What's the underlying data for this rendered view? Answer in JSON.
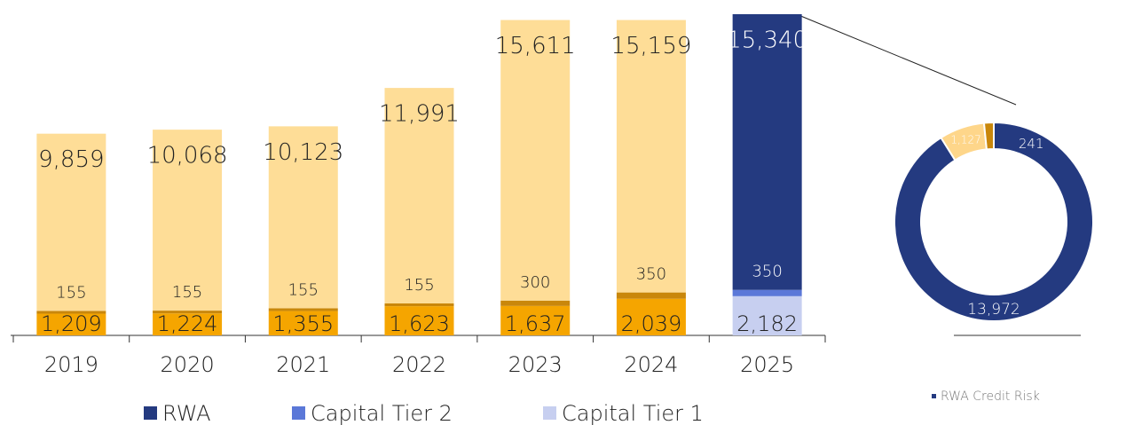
{
  "chart_data": [
    {
      "type": "bar",
      "stacked": true,
      "categories": [
        "2019",
        "2020",
        "2021",
        "2022",
        "2023",
        "2024",
        "2025"
      ],
      "series": [
        {
          "name": "Capital Tier 1",
          "color": "#c7cff0",
          "colors": [
            "#f5a500",
            "#f5a500",
            "#f5a500",
            "#f5a500",
            "#f5a500",
            "#f5a500",
            "#c7cff0"
          ],
          "values": [
            1209,
            1224,
            1355,
            1623,
            1637,
            2039,
            2182
          ],
          "value_labels": [
            "1,209",
            "1,224",
            "1,355",
            "1,623",
            "1,637",
            "2,039",
            "2,182"
          ]
        },
        {
          "name": "Capital Tier 2",
          "color": "#5b78d8",
          "colors": [
            "#c9870b",
            "#c9870b",
            "#c9870b",
            "#c9870b",
            "#c9870b",
            "#c9870b",
            "#5b78d8"
          ],
          "values": [
            155,
            155,
            155,
            155,
            300,
            350,
            350
          ]
        },
        {
          "name": "RWA",
          "color": "#243a80",
          "colors": [
            "#fedd97",
            "#fedd97",
            "#fedd97",
            "#fedd97",
            "#fedd97",
            "#fedd97",
            "#243a80"
          ],
          "values": [
            9859,
            10068,
            10123,
            11991,
            15611,
            15159,
            15340
          ],
          "value_labels": [
            "9,859",
            "10,068",
            "10,123",
            "11,991",
            "15,611",
            "15,159",
            "15,340"
          ]
        }
      ],
      "legend_order": [
        2,
        1,
        0
      ]
    },
    {
      "type": "pie",
      "donut": true,
      "categories": [
        "RWA Credit Risk",
        null,
        null
      ],
      "values": [
        13972,
        1127,
        241
      ],
      "value_labels": [
        "13,972",
        "1,127",
        "241"
      ],
      "colors": [
        "#243a80",
        "#fed68a",
        "#c9870b"
      ]
    }
  ]
}
